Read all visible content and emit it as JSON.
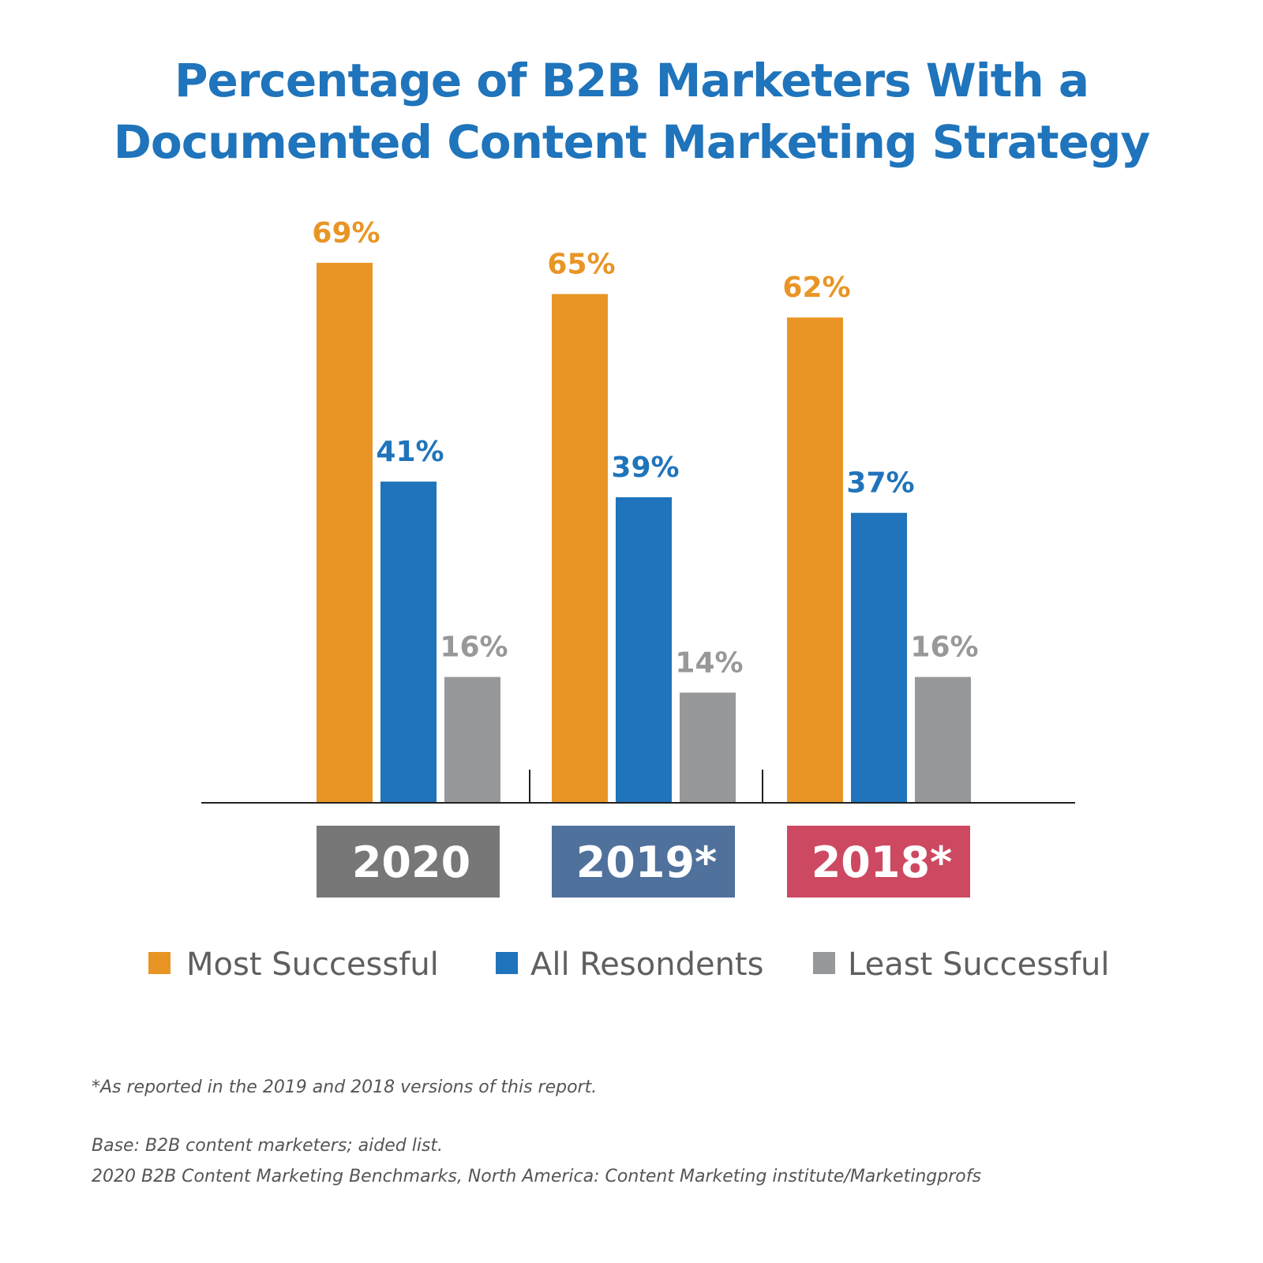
{
  "title": {
    "line1": "Percentage of B2B Marketers With a",
    "line2": "Documented Content Marketing Strategy"
  },
  "colors": {
    "title": "#1f74bb",
    "most": "#e99526",
    "all": "#1f74bb",
    "least": "#97989a",
    "year_2020": "#777777",
    "year_2019": "#50719c",
    "year_2018": "#cd4962",
    "axis": "#222222"
  },
  "chart_data": {
    "type": "bar",
    "title": "Percentage of B2B Marketers With a Documented Content Marketing Strategy",
    "categories": [
      "2020",
      "2019*",
      "2018*"
    ],
    "series": [
      {
        "name": "Most Successful",
        "values": [
          69,
          65,
          62
        ],
        "labels": [
          "69%",
          "65%",
          "62%"
        ]
      },
      {
        "name": "All Resondents",
        "values": [
          41,
          39,
          37
        ],
        "labels": [
          "41%",
          "39%",
          "37%"
        ]
      },
      {
        "name": "Least Successful",
        "values": [
          16,
          14,
          16
        ],
        "labels": [
          "16%",
          "14%",
          "16%"
        ]
      }
    ],
    "ylabel": "",
    "xlabel": "",
    "ylim": [
      0,
      100
    ],
    "unit": "%",
    "legend_position": "bottom",
    "grid": false
  },
  "footnotes": {
    "note": "*As reported in the 2019 and 2018 versions of this report.",
    "base": "Base: B2B content marketers; aided list.",
    "source": "2020 B2B Content Marketing Benchmarks, North America: Content Marketing institute/Marketingprofs"
  }
}
